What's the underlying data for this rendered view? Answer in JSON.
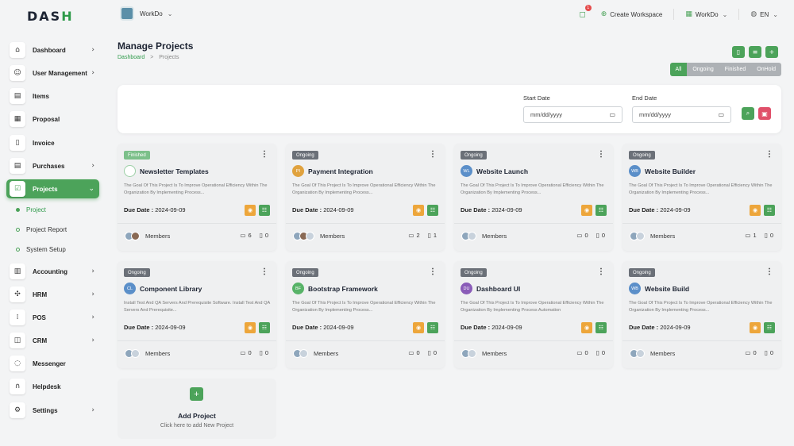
{
  "brand": {
    "logo_main": "DAS",
    "logo_accent": "H"
  },
  "sidebar": {
    "items": [
      {
        "label": "Dashboard",
        "icon": "home-icon",
        "glyph": "⌂",
        "chevron": true
      },
      {
        "label": "User Management",
        "icon": "users-icon",
        "glyph": "☺",
        "chevron": true
      },
      {
        "label": "Items",
        "icon": "cart-icon",
        "glyph": "▤",
        "chevron": false
      },
      {
        "label": "Proposal",
        "icon": "proposal-icon",
        "glyph": "▦",
        "chevron": false
      },
      {
        "label": "Invoice",
        "icon": "invoice-icon",
        "glyph": "▯",
        "chevron": false
      },
      {
        "label": "Purchases",
        "icon": "purchase-cart-icon",
        "glyph": "▤",
        "chevron": true
      },
      {
        "label": "Projects",
        "icon": "projects-icon",
        "glyph": "☑",
        "chevron": true,
        "active": true
      },
      {
        "label": "Accounting",
        "icon": "accounting-icon",
        "glyph": "▥",
        "chevron": true
      },
      {
        "label": "HRM",
        "icon": "hrm-icon",
        "glyph": "✣",
        "chevron": true
      },
      {
        "label": "POS",
        "icon": "pos-grid-icon",
        "glyph": "⁞",
        "chevron": true
      },
      {
        "label": "CRM",
        "icon": "crm-icon",
        "glyph": "◫",
        "chevron": true
      },
      {
        "label": "Messenger",
        "icon": "messenger-icon",
        "glyph": "◌",
        "chevron": false
      },
      {
        "label": "Helpdesk",
        "icon": "headset-icon",
        "glyph": "∩",
        "chevron": false
      },
      {
        "label": "Settings",
        "icon": "settings-gear-icon",
        "glyph": "⚙",
        "chevron": true
      }
    ],
    "sub_items": [
      {
        "label": "Project",
        "current": true
      },
      {
        "label": "Project Report",
        "current": false
      },
      {
        "label": "System Setup",
        "current": false
      }
    ]
  },
  "topbar": {
    "workspace": "WorkDo",
    "notification_count": "1",
    "create_workspace": "Create Workspace",
    "workspace_menu": "WorkDo",
    "language": "EN"
  },
  "page": {
    "title": "Manage Projects",
    "breadcrumb_home": "Dashboard",
    "breadcrumb_sep": ">",
    "breadcrumb_current": "Projects"
  },
  "filter_tabs": [
    "All",
    "Ongoing",
    "Finished",
    "OnHold"
  ],
  "filters": {
    "start_label": "Start Date",
    "end_label": "End Date",
    "start_value": "mm/dd/yyyy",
    "end_value": "mm/dd/yyyy"
  },
  "card_common": {
    "due_label": "Due Date :",
    "members_label": "Members"
  },
  "projects": [
    {
      "status": "Finished",
      "name": "Newsletter Templates",
      "initials": "",
      "avatar_color": "#ffffff",
      "desc": "The Goal Of This Project Is To Improve Operational Efficiency Within The Organization By Implementing Process...",
      "due": "2024-09-09",
      "comments": "6",
      "files": "0"
    },
    {
      "status": "Ongoing",
      "name": "Payment Integration",
      "initials": "PI",
      "avatar_color": "#e0a23e",
      "desc": "The Goal Of This Project Is To Improve Operational Efficiency Within The Organization By Implementing Process...",
      "due": "2024-09-09",
      "comments": "2",
      "files": "1"
    },
    {
      "status": "Ongoing",
      "name": "Website Launch",
      "initials": "WL",
      "avatar_color": "#5b8fc9",
      "desc": "The Goal Of This Project Is To Improve Operational Efficiency Within The Organization By Implementing Process...",
      "due": "2024-09-09",
      "comments": "0",
      "files": "0"
    },
    {
      "status": "Ongoing",
      "name": "Website Builder",
      "initials": "WB",
      "avatar_color": "#5b8fc9",
      "desc": "The Goal Of This Project Is To Improve Operational Efficiency Within The Organization By Implementing Process...",
      "due": "2024-09-09",
      "comments": "1",
      "files": "0"
    },
    {
      "status": "Ongoing",
      "name": "Component Library",
      "initials": "CL",
      "avatar_color": "#5b8fc9",
      "desc": "Install Test And QA Servers And Prerequisite Software. Install Test And QA Servers And Prerequisite...",
      "due": "2024-09-09",
      "comments": "0",
      "files": "0"
    },
    {
      "status": "Ongoing",
      "name": "Bootstrap Framework",
      "initials": "BF",
      "avatar_color": "#58b368",
      "desc": "The Goal Of This Project Is To Improve Operational Efficiency Within The Organization By Implementing Process...",
      "due": "2024-09-09",
      "comments": "0",
      "files": "0"
    },
    {
      "status": "Ongoing",
      "name": "Dashboard UI",
      "initials": "DU",
      "avatar_color": "#8a5cb8",
      "desc": "The Goal Of This Project Is To Improve Operational Efficiency Within The Organization By Implementing Process Automation",
      "due": "2024-09-09",
      "comments": "0",
      "files": "0"
    },
    {
      "status": "Ongoing",
      "name": "Website Build",
      "initials": "WB",
      "avatar_color": "#5b8fc9",
      "desc": "The Goal Of This Project Is To Improve Operational Efficiency Within The Organization By Implementing Process...",
      "due": "2024-09-09",
      "comments": "0",
      "files": "0"
    }
  ],
  "add_card": {
    "title": "Add Project",
    "subtitle": "Click here to add New Project"
  },
  "colors": {
    "accent": "#4ca35a",
    "warning": "#eda63b",
    "danger": "#e0506a",
    "ongoing": "#6b7078"
  }
}
